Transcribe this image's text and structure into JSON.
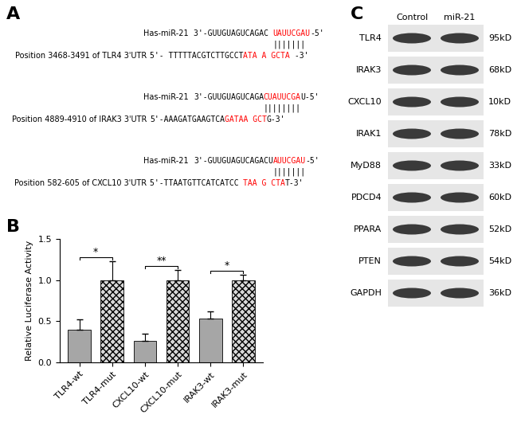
{
  "panel_labels": [
    "A",
    "B",
    "C"
  ],
  "alignments": [
    {
      "mirna_label": "Has-miR-21",
      "mirna_sequence": [
        {
          "text": "3'-GUUGUAGUCAGAC ",
          "color": "black"
        },
        {
          "text": "UAUUCGAU",
          "color": "red"
        },
        {
          "text": "-5'",
          "color": "black"
        }
      ],
      "pairing": "|||||||",
      "target_label": "Position 3468-3491 of TLR4 3'UTR",
      "target_sequence": [
        {
          "text": "5'- TTTTTACGTCTTGCCT",
          "color": "black"
        },
        {
          "text": "ATA A GCTA",
          "color": "red"
        },
        {
          "text": " -3'",
          "color": "black"
        }
      ]
    },
    {
      "mirna_label": "Has-miR-21",
      "mirna_sequence": [
        {
          "text": "3'-GUUGUAGUCAGA",
          "color": "black"
        },
        {
          "text": "CUAUUCGA",
          "color": "red"
        },
        {
          "text": "U-5'",
          "color": "black"
        }
      ],
      "pairing": "||||||||",
      "target_label": "Position 4889-4910 of IRAK3 3'UTR",
      "target_sequence": [
        {
          "text": "5'-AAAGATGAAGTCA",
          "color": "black"
        },
        {
          "text": "GATAA GCT",
          "color": "red"
        },
        {
          "text": "G-3'",
          "color": "black"
        }
      ]
    },
    {
      "mirna_label": "Has-miR-21",
      "mirna_sequence": [
        {
          "text": "3'-GUUGUAGUCAGACU",
          "color": "black"
        },
        {
          "text": "AUUCGAU",
          "color": "red"
        },
        {
          "text": "-5'",
          "color": "black"
        }
      ],
      "pairing": "|||||||",
      "target_label": "Position 582-605 of CXCL10 3'UTR",
      "target_sequence": [
        {
          "text": "5'-TTAATGTTCATCATCC ",
          "color": "black"
        },
        {
          "text": "TAA G CTA",
          "color": "red"
        },
        {
          "text": "T-3'",
          "color": "black"
        }
      ]
    }
  ],
  "chart_data": {
    "type": "bar",
    "categories": [
      "TLR4-wt",
      "TLR4-mut",
      "CXCL10-wt",
      "CXCL10-mut",
      "IRAK3-wt",
      "IRAK3-mut"
    ],
    "values": [
      0.4,
      1.0,
      0.26,
      1.0,
      0.53,
      1.0
    ],
    "errors": [
      0.12,
      0.23,
      0.09,
      0.12,
      0.09,
      0.06
    ],
    "colors": [
      "#a6a6a6",
      "#d9d9d9",
      "#a6a6a6",
      "#d9d9d9",
      "#a6a6a6",
      "#d9d9d9"
    ],
    "ylabel": "Relative Luciferase Activity",
    "ylim": [
      0,
      1.5
    ],
    "yticks": [
      {
        "value": 0,
        "label": "0.0"
      },
      {
        "value": 0.5,
        "label": "0.5"
      },
      {
        "value": 1.0,
        "label": "1.0"
      },
      {
        "value": 1.5,
        "label": "1.5"
      }
    ],
    "significance": [
      {
        "from": "TLR4-wt",
        "to": "TLR4-mut",
        "label": "*"
      },
      {
        "from": "CXCL10-wt",
        "to": "CXCL10-mut",
        "label": "**"
      },
      {
        "from": "IRAK3-wt",
        "to": "IRAK3-mut",
        "label": "*"
      }
    ]
  },
  "western_blot": {
    "columns": [
      "Control",
      "miR-21"
    ],
    "rows": [
      {
        "protein": "TLR4",
        "size": "95kD"
      },
      {
        "protein": "IRAK3",
        "size": "68kD"
      },
      {
        "protein": "CXCL10",
        "size": "10kD"
      },
      {
        "protein": "IRAK1",
        "size": "78kD"
      },
      {
        "protein": "MyD88",
        "size": "33kD"
      },
      {
        "protein": "PDCD4",
        "size": "60kD"
      },
      {
        "protein": "PPARA",
        "size": "52kD"
      },
      {
        "protein": "PTEN",
        "size": "54kD"
      },
      {
        "protein": "GAPDH",
        "size": "36kD"
      }
    ]
  }
}
